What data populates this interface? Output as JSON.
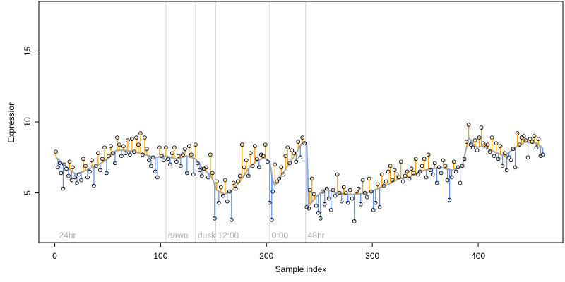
{
  "chart_data": {
    "type": "scatter",
    "title": "",
    "xlabel": "Sample index",
    "ylabel": "Expression",
    "xlim": [
      -15,
      480
    ],
    "ylim": [
      1.5,
      18.5
    ],
    "x_ticks": [
      0,
      100,
      200,
      300,
      400
    ],
    "y_ticks": [
      5,
      10,
      15
    ],
    "grid": false,
    "period_markers": [
      {
        "label": "24hr",
        "x": 2,
        "line": false
      },
      {
        "label": "dawn",
        "x": 105,
        "line": true
      },
      {
        "label": "dusk",
        "x": 133,
        "line": true
      },
      {
        "label": "12:00",
        "x": 152,
        "line": true
      },
      {
        "label": "0:00",
        "x": 203,
        "line": true
      },
      {
        "label": "48hr",
        "x": 237,
        "line": true
      }
    ],
    "colors": {
      "fitted_line": "#aaaaaa",
      "residual_above": "#ffa500",
      "residual_below": "#6495ed",
      "point_edge": "#000000",
      "period_line": "#d3d3d3",
      "period_text": "#aaaaaa"
    },
    "legend": "none",
    "fitted_knots": [
      [
        0,
        7.6
      ],
      [
        10,
        6.9
      ],
      [
        20,
        6.3
      ],
      [
        30,
        6.6
      ],
      [
        42,
        7.0
      ],
      [
        50,
        7.4
      ],
      [
        58,
        8.0
      ],
      [
        66,
        8.0
      ],
      [
        75,
        7.9
      ],
      [
        85,
        7.7
      ],
      [
        95,
        7.5
      ],
      [
        105,
        7.6
      ],
      [
        115,
        7.4
      ],
      [
        125,
        7.6
      ],
      [
        133,
        7.4
      ],
      [
        140,
        6.7
      ],
      [
        148,
        6.2
      ],
      [
        153,
        5.2
      ],
      [
        160,
        4.9
      ],
      [
        168,
        5.2
      ],
      [
        175,
        5.8
      ],
      [
        183,
        6.7
      ],
      [
        190,
        7.2
      ],
      [
        198,
        7.5
      ],
      [
        203,
        7.2
      ],
      [
        207,
        5.4
      ],
      [
        213,
        6.1
      ],
      [
        220,
        6.9
      ],
      [
        228,
        7.8
      ],
      [
        235,
        8.7
      ],
      [
        238,
        8.4
      ],
      [
        240,
        4.1
      ],
      [
        248,
        4.8
      ],
      [
        256,
        5.3
      ],
      [
        265,
        5.0
      ],
      [
        275,
        4.9
      ],
      [
        285,
        4.9
      ],
      [
        295,
        5.0
      ],
      [
        305,
        5.3
      ],
      [
        315,
        5.6
      ],
      [
        325,
        6.0
      ],
      [
        335,
        6.1
      ],
      [
        345,
        6.5
      ],
      [
        355,
        6.7
      ],
      [
        365,
        6.8
      ],
      [
        375,
        6.6
      ],
      [
        385,
        6.9
      ],
      [
        391,
        8.9
      ],
      [
        398,
        8.2
      ],
      [
        405,
        8.3
      ],
      [
        415,
        7.9
      ],
      [
        425,
        7.6
      ],
      [
        435,
        8.2
      ],
      [
        445,
        8.6
      ],
      [
        455,
        8.5
      ],
      [
        462,
        8.1
      ]
    ],
    "points": [
      [
        1,
        7.9
      ],
      [
        3,
        6.8
      ],
      [
        5,
        7.1
      ],
      [
        6,
        6.4
      ],
      [
        8,
        5.3
      ],
      [
        9,
        7.0
      ],
      [
        11,
        6.7
      ],
      [
        13,
        6.2
      ],
      [
        14,
        7.2
      ],
      [
        16,
        5.9
      ],
      [
        17,
        6.8
      ],
      [
        19,
        6.1
      ],
      [
        21,
        5.7
      ],
      [
        23,
        6.3
      ],
      [
        25,
        5.9
      ],
      [
        27,
        7.4
      ],
      [
        29,
        6.9
      ],
      [
        31,
        6.1
      ],
      [
        33,
        6.5
      ],
      [
        35,
        7.3
      ],
      [
        37,
        5.5
      ],
      [
        39,
        6.9
      ],
      [
        41,
        7.8
      ],
      [
        43,
        6.6
      ],
      [
        45,
        7.4
      ],
      [
        47,
        8.2
      ],
      [
        49,
        6.4
      ],
      [
        51,
        7.6
      ],
      [
        53,
        8.3
      ],
      [
        55,
        7.8
      ],
      [
        57,
        7.1
      ],
      [
        59,
        8.9
      ],
      [
        61,
        8.4
      ],
      [
        63,
        7.6
      ],
      [
        65,
        8.3
      ],
      [
        67,
        7.8
      ],
      [
        69,
        8.7
      ],
      [
        71,
        7.7
      ],
      [
        73,
        8.8
      ],
      [
        75,
        7.9
      ],
      [
        77,
        8.9
      ],
      [
        79,
        8.4
      ],
      [
        81,
        9.2
      ],
      [
        83,
        7.7
      ],
      [
        85,
        8.9
      ],
      [
        87,
        8.1
      ],
      [
        89,
        7.3
      ],
      [
        91,
        6.9
      ],
      [
        93,
        7.5
      ],
      [
        95,
        6.5
      ],
      [
        97,
        6.1
      ],
      [
        99,
        8.2
      ],
      [
        101,
        7.6
      ],
      [
        103,
        7.3
      ],
      [
        105,
        8.2
      ],
      [
        107,
        7.4
      ],
      [
        109,
        7.0
      ],
      [
        111,
        7.8
      ],
      [
        113,
        8.2
      ],
      [
        115,
        7.2
      ],
      [
        117,
        7.6
      ],
      [
        119,
        6.9
      ],
      [
        121,
        7.7
      ],
      [
        123,
        8.1
      ],
      [
        125,
        6.4
      ],
      [
        127,
        8.3
      ],
      [
        129,
        7.7
      ],
      [
        131,
        6.3
      ],
      [
        133,
        8.4
      ],
      [
        135,
        7.1
      ],
      [
        137,
        6.6
      ],
      [
        139,
        6.2
      ],
      [
        141,
        6.7
      ],
      [
        143,
        6.8
      ],
      [
        145,
        6.1
      ],
      [
        147,
        7.7
      ],
      [
        149,
        6.4
      ],
      [
        151,
        3.2
      ],
      [
        153,
        5.8
      ],
      [
        155,
        4.3
      ],
      [
        157,
        5.4
      ],
      [
        159,
        4.8
      ],
      [
        161,
        5.9
      ],
      [
        163,
        4.4
      ],
      [
        165,
        5.1
      ],
      [
        167,
        3.1
      ],
      [
        169,
        5.7
      ],
      [
        171,
        5.3
      ],
      [
        173,
        5.8
      ],
      [
        175,
        6.2
      ],
      [
        177,
        8.4
      ],
      [
        179,
        6.8
      ],
      [
        181,
        7.3
      ],
      [
        183,
        6.2
      ],
      [
        185,
        7.8
      ],
      [
        187,
        6.9
      ],
      [
        189,
        8.3
      ],
      [
        191,
        7.4
      ],
      [
        193,
        6.8
      ],
      [
        195,
        7.7
      ],
      [
        197,
        7.6
      ],
      [
        199,
        8.4
      ],
      [
        201,
        7.2
      ],
      [
        203,
        4.3
      ],
      [
        205,
        3.1
      ],
      [
        206,
        5.1
      ],
      [
        208,
        7.0
      ],
      [
        210,
        5.8
      ],
      [
        212,
        6.0
      ],
      [
        214,
        6.8
      ],
      [
        216,
        6.3
      ],
      [
        218,
        7.6
      ],
      [
        220,
        8.2
      ],
      [
        222,
        7.1
      ],
      [
        224,
        8.0
      ],
      [
        226,
        7.8
      ],
      [
        228,
        7.2
      ],
      [
        230,
        8.6
      ],
      [
        232,
        7.5
      ],
      [
        234,
        8.9
      ],
      [
        236,
        8.5
      ],
      [
        238,
        4.0
      ],
      [
        240,
        3.9
      ],
      [
        241,
        5.2
      ],
      [
        243,
        6.0
      ],
      [
        245,
        4.9
      ],
      [
        247,
        4.1
      ],
      [
        249,
        3.6
      ],
      [
        251,
        3.2
      ],
      [
        253,
        5.1
      ],
      [
        255,
        4.2
      ],
      [
        257,
        5.3
      ],
      [
        259,
        4.6
      ],
      [
        261,
        3.8
      ],
      [
        263,
        5.2
      ],
      [
        265,
        4.8
      ],
      [
        267,
        6.3
      ],
      [
        269,
        5.0
      ],
      [
        271,
        4.4
      ],
      [
        273,
        5.4
      ],
      [
        275,
        5.0
      ],
      [
        277,
        4.3
      ],
      [
        279,
        5.2
      ],
      [
        281,
        4.6
      ],
      [
        283,
        3.0
      ],
      [
        285,
        5.1
      ],
      [
        287,
        5.3
      ],
      [
        289,
        4.2
      ],
      [
        291,
        5.9
      ],
      [
        293,
        5.0
      ],
      [
        295,
        4.7
      ],
      [
        297,
        6.0
      ],
      [
        299,
        5.1
      ],
      [
        301,
        3.8
      ],
      [
        303,
        4.3
      ],
      [
        305,
        5.6
      ],
      [
        307,
        4.0
      ],
      [
        309,
        6.3
      ],
      [
        311,
        5.5
      ],
      [
        313,
        5.8
      ],
      [
        315,
        6.5
      ],
      [
        317,
        6.9
      ],
      [
        319,
        5.9
      ],
      [
        321,
        6.6
      ],
      [
        323,
        6.3
      ],
      [
        325,
        6.1
      ],
      [
        327,
        7.2
      ],
      [
        329,
        5.8
      ],
      [
        331,
        6.2
      ],
      [
        333,
        6.5
      ],
      [
        335,
        6.0
      ],
      [
        337,
        6.7
      ],
      [
        339,
        6.4
      ],
      [
        341,
        7.4
      ],
      [
        343,
        6.3
      ],
      [
        345,
        6.5
      ],
      [
        347,
        6.9
      ],
      [
        349,
        7.4
      ],
      [
        351,
        6.1
      ],
      [
        353,
        7.7
      ],
      [
        355,
        6.6
      ],
      [
        357,
        6.3
      ],
      [
        359,
        7.1
      ],
      [
        361,
        5.7
      ],
      [
        363,
        6.8
      ],
      [
        365,
        6.4
      ],
      [
        367,
        7.3
      ],
      [
        369,
        6.9
      ],
      [
        371,
        5.9
      ],
      [
        373,
        4.5
      ],
      [
        375,
        6.1
      ],
      [
        377,
        7.2
      ],
      [
        379,
        6.5
      ],
      [
        381,
        6.8
      ],
      [
        383,
        5.7
      ],
      [
        385,
        6.9
      ],
      [
        387,
        7.4
      ],
      [
        389,
        8.6
      ],
      [
        391,
        9.8
      ],
      [
        393,
        8.4
      ],
      [
        395,
        8.2
      ],
      [
        397,
        8.7
      ],
      [
        399,
        8.0
      ],
      [
        401,
        8.9
      ],
      [
        403,
        9.6
      ],
      [
        405,
        8.5
      ],
      [
        407,
        8.2
      ],
      [
        409,
        8.4
      ],
      [
        411,
        7.9
      ],
      [
        413,
        8.9
      ],
      [
        415,
        7.6
      ],
      [
        417,
        8.5
      ],
      [
        419,
        7.4
      ],
      [
        421,
        8.3
      ],
      [
        423,
        6.9
      ],
      [
        425,
        7.8
      ],
      [
        427,
        6.6
      ],
      [
        429,
        7.5
      ],
      [
        431,
        7.3
      ],
      [
        433,
        8.1
      ],
      [
        435,
        6.8
      ],
      [
        437,
        9.2
      ],
      [
        439,
        8.4
      ],
      [
        441,
        8.9
      ],
      [
        443,
        9.0
      ],
      [
        445,
        8.7
      ],
      [
        447,
        7.5
      ],
      [
        449,
        8.8
      ],
      [
        451,
        8.6
      ],
      [
        453,
        9.0
      ],
      [
        455,
        8.2
      ],
      [
        457,
        8.8
      ],
      [
        459,
        7.6
      ],
      [
        461,
        7.7
      ]
    ]
  }
}
